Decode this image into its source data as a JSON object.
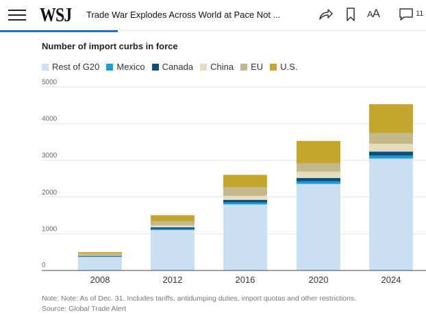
{
  "header": {
    "logo": "WSJ",
    "headline": "Trade War Explodes Across World at Pace Not ...",
    "text_size_label": "A",
    "text_size_label_large": "A",
    "comments_count": "11"
  },
  "chart_data": {
    "type": "bar",
    "stacked": true,
    "title": "Number of import curbs in force",
    "categories": [
      "2008",
      "2012",
      "2016",
      "2020",
      "2024"
    ],
    "series": [
      {
        "name": "Rest of G20",
        "color": "#c9dff2",
        "values": [
          370,
          1100,
          1800,
          2360,
          3050
        ]
      },
      {
        "name": "Mexico",
        "color": "#1a9bd7",
        "values": [
          15,
          35,
          55,
          70,
          80
        ]
      },
      {
        "name": "Canada",
        "color": "#0c4f7c",
        "values": [
          15,
          40,
          70,
          90,
          110
        ]
      },
      {
        "name": "China",
        "color": "#e6dcbd",
        "values": [
          20,
          50,
          110,
          170,
          210
        ]
      },
      {
        "name": "EU",
        "color": "#c4b98c",
        "values": [
          40,
          120,
          240,
          230,
          300
        ]
      },
      {
        "name": "U.S.",
        "color": "#c6a52e",
        "values": [
          40,
          160,
          330,
          610,
          780
        ]
      }
    ],
    "yticks": [
      0,
      1000,
      2000,
      3000,
      4000,
      5000
    ],
    "ylim": [
      0,
      5000
    ],
    "grid": true,
    "legend_position": "top-left"
  },
  "footer": {
    "note": "Note: Note: As of Dec. 31. Includes tariffs, antidumping duties, import quotas and other restrictions.",
    "source": "Source: Global Trade Alert"
  },
  "colors": {
    "accent": "#1f6fd1"
  }
}
